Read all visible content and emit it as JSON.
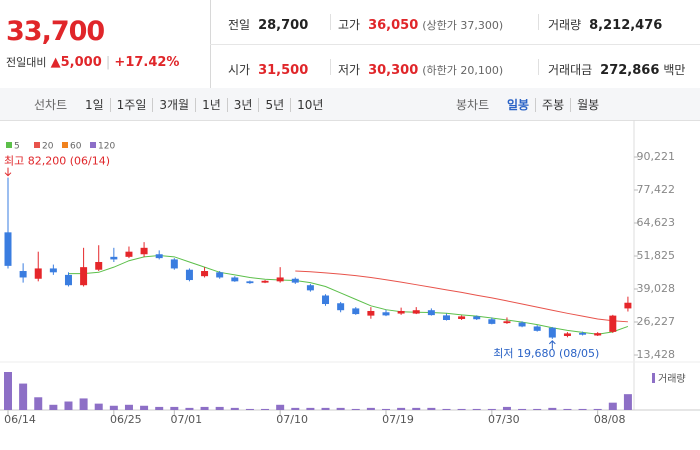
{
  "header": {
    "price": "33,700",
    "change_label": "전일대비",
    "change": "▲5,000",
    "change_pct": "+17.42%",
    "color": "#e0262a"
  },
  "stats": [
    {
      "label": "전일",
      "value": "28,700"
    },
    {
      "label": "고가",
      "value": "36,050",
      "note": "(상한가 37,300)",
      "color": "#e0262a"
    },
    {
      "label": "거래량",
      "value": "8,212,476"
    },
    {
      "label": "시가",
      "value": "31,500",
      "color": "#e0262a"
    },
    {
      "label": "저가",
      "value": "30,300",
      "note": "(하한가 20,100)",
      "color": "#e0262a"
    },
    {
      "label": "거래대금",
      "value": "272,866",
      "unit": "백만"
    }
  ],
  "tabs": {
    "line_label": "선차트",
    "line": [
      "1일",
      "1주일",
      "3개월",
      "1년",
      "3년",
      "5년",
      "10년"
    ],
    "candle_label": "봉차트",
    "candle": [
      "일봉",
      "주봉",
      "월봉"
    ],
    "active_candle": 0,
    "active_color": "#2b63c6"
  },
  "chart_data": {
    "type": "candlestick",
    "categories": [
      "06/14",
      null,
      null,
      null,
      null,
      null,
      null,
      "06/25",
      null,
      null,
      null,
      "07/01",
      null,
      null,
      null,
      null,
      null,
      null,
      "07/10",
      null,
      null,
      null,
      null,
      null,
      null,
      "07/19",
      null,
      null,
      null,
      null,
      null,
      null,
      "07/30",
      null,
      null,
      null,
      null,
      null,
      null,
      "08/08",
      null,
      null
    ],
    "open": [
      61000,
      46000,
      43000,
      47000,
      44500,
      40500,
      46500,
      51500,
      51500,
      52500,
      52500,
      50500,
      46500,
      44000,
      45500,
      43500,
      42000,
      41500,
      42000,
      43000,
      40500,
      36500,
      33500,
      31500,
      28700,
      30000,
      29500,
      29500,
      30800,
      28800,
      27400,
      28400,
      27300,
      25800,
      26000,
      24500,
      24000,
      20800,
      22000,
      21000,
      22400,
      31500
    ],
    "high": [
      82200,
      49000,
      53500,
      48500,
      45500,
      55000,
      56000,
      55000,
      55500,
      57200,
      54000,
      51000,
      47000,
      47500,
      46000,
      44000,
      42300,
      42500,
      47500,
      43500,
      41000,
      37000,
      34000,
      32000,
      32000,
      31000,
      31800,
      32000,
      31500,
      29500,
      28800,
      28800,
      28000,
      28000,
      26500,
      25000,
      24300,
      22300,
      22500,
      22300,
      29000,
      36050
    ],
    "low": [
      47000,
      41500,
      42000,
      44500,
      40000,
      40000,
      46000,
      49500,
      51000,
      51500,
      50500,
      46500,
      42000,
      43500,
      43000,
      41800,
      41000,
      41300,
      41500,
      41000,
      38000,
      32500,
      30000,
      29000,
      27500,
      28500,
      29000,
      29300,
      28700,
      26800,
      27000,
      27000,
      25300,
      25500,
      24200,
      22500,
      19680,
      20300,
      21000,
      20800,
      22000,
      30300
    ],
    "close": [
      48000,
      43500,
      47000,
      45500,
      40500,
      47500,
      49500,
      50500,
      53500,
      55000,
      51000,
      47000,
      42500,
      46000,
      43500,
      42000,
      41300,
      42200,
      43500,
      41500,
      38500,
      33200,
      30800,
      29300,
      30500,
      28800,
      30500,
      30800,
      28900,
      27000,
      28400,
      27300,
      25500,
      26500,
      24500,
      22800,
      20200,
      21800,
      21300,
      21900,
      28700,
      33700
    ],
    "up_color": "#e5262a",
    "down_color": "#3a7de0",
    "moving_averages": [
      {
        "name": "5",
        "color": "#5cbf4a",
        "values": [
          null,
          null,
          null,
          null,
          45000,
          45000,
          45500,
          47500,
          50000,
          51500,
          52000,
          51500,
          49500,
          47500,
          45500,
          44500,
          43500,
          42800,
          42500,
          42300,
          41500,
          40000,
          37500,
          35000,
          32500,
          31000,
          30200,
          30000,
          29900,
          29600,
          29000,
          28500,
          27800,
          27000,
          26200,
          25200,
          24000,
          23000,
          22200,
          21500,
          22400,
          24500
        ]
      },
      {
        "name": "20",
        "color": "#e8534b",
        "values": [
          null,
          null,
          null,
          null,
          null,
          null,
          null,
          null,
          null,
          null,
          null,
          null,
          null,
          null,
          null,
          null,
          null,
          null,
          null,
          46000,
          45700,
          45300,
          44800,
          44200,
          43500,
          42600,
          41700,
          40700,
          39700,
          38700,
          37700,
          36600,
          35600,
          34400,
          33200,
          32000,
          30800,
          29600,
          28500,
          27400,
          26700,
          26300
        ]
      },
      {
        "name": "60",
        "color": "#f0821e",
        "values": [
          null,
          null,
          null,
          null,
          null,
          null,
          null,
          null,
          null,
          null,
          null,
          null,
          null,
          null,
          null,
          null,
          null,
          null,
          null,
          null,
          null,
          null,
          null,
          null,
          null,
          null,
          null,
          null,
          null,
          null,
          null,
          null,
          null,
          null,
          null,
          null,
          null,
          null,
          null,
          null,
          null,
          null
        ]
      },
      {
        "name": "120",
        "color": "#8c6ec8",
        "values": [
          null,
          null,
          null,
          null,
          null,
          null,
          null,
          null,
          null,
          null,
          null,
          null,
          null,
          null,
          null,
          null,
          null,
          null,
          null,
          null,
          null,
          null,
          null,
          null,
          null,
          null,
          null,
          null,
          null,
          null,
          null,
          null,
          null,
          null,
          null,
          null,
          null,
          null,
          null,
          null,
          null,
          null
        ]
      }
    ],
    "volume": {
      "name": "거래량",
      "color": "#8d6fc6",
      "values": [
        19700000,
        13700000,
        6600000,
        2700000,
        4400000,
        6000000,
        3300000,
        2200000,
        2700000,
        2200000,
        1600000,
        1600000,
        1100000,
        1600000,
        1600000,
        1100000,
        550000,
        550000,
        2700000,
        1100000,
        1100000,
        1100000,
        1100000,
        550000,
        1100000,
        550000,
        1100000,
        1100000,
        1100000,
        550000,
        550000,
        550000,
        550000,
        1600000,
        550000,
        550000,
        1100000,
        550000,
        550000,
        550000,
        3800000,
        8212476
      ]
    },
    "ylim": [
      13428,
      90221
    ],
    "yticks": [
      {
        "value": 90221,
        "label": "90,221"
      },
      {
        "value": 77422,
        "label": "77,422"
      },
      {
        "value": 64623,
        "label": "64,623"
      },
      {
        "value": 51825,
        "label": "51,825"
      },
      {
        "value": 39028,
        "label": "39,028"
      },
      {
        "value": 26227,
        "label": "26,227"
      },
      {
        "value": 13428,
        "label": "13,428"
      }
    ],
    "annotations": [
      {
        "text": "최고 82,200 (06/14)",
        "value": 82200,
        "kind": "high",
        "color": "#e0262a"
      },
      {
        "text": "최저 19,680 (08/05)",
        "value": 19680,
        "kind": "low",
        "color": "#2b63c6"
      }
    ],
    "grid": false
  }
}
